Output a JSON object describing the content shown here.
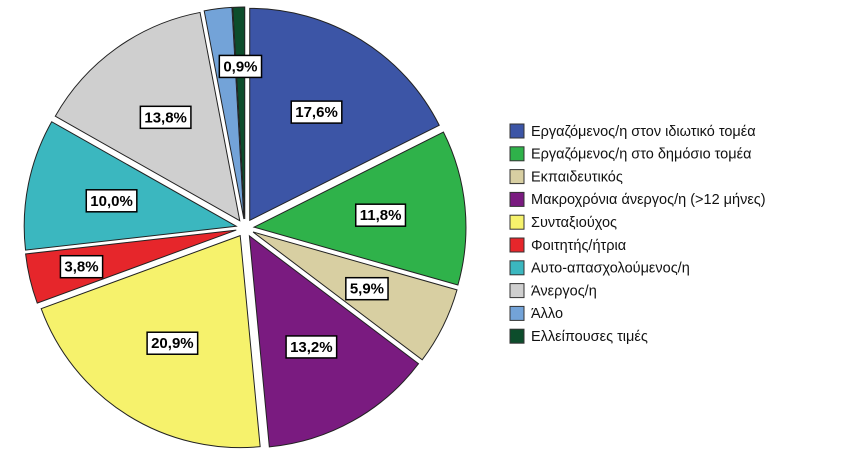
{
  "chart_data": {
    "type": "pie",
    "categories": [
      "Εργαζόμενος/η στον ιδιωτικό τομέα",
      "Εργαζόμενος/η στο δημόσιο τομέα",
      "Εκπαιδευτικός",
      "Μακροχρόνια άνεργος/η (>12 μήνες)",
      "Συνταξιούχος",
      "Φοιτητής/ήτρια",
      "Αυτο-απασχολούμενος/η",
      "Άνεργος/η",
      "Άλλο",
      "Ελλείπουσες τιμές"
    ],
    "values": [
      17.6,
      11.8,
      5.9,
      13.2,
      20.9,
      3.8,
      10.0,
      13.8,
      2.1,
      0.9
    ],
    "value_labels": [
      "17,6%",
      "11,8%",
      "5,9%",
      "13,2%",
      "20,9%",
      "3,8%",
      "10,0%",
      "13,8%",
      null,
      "0,9%"
    ],
    "colors": [
      "#3c55a6",
      "#2fb24a",
      "#d8cfa2",
      "#7a1b80",
      "#f6f26c",
      "#e6262b",
      "#3bb7bf",
      "#cfcfcf",
      "#73a3d8",
      "#0d4d2c"
    ],
    "legend": "right"
  }
}
